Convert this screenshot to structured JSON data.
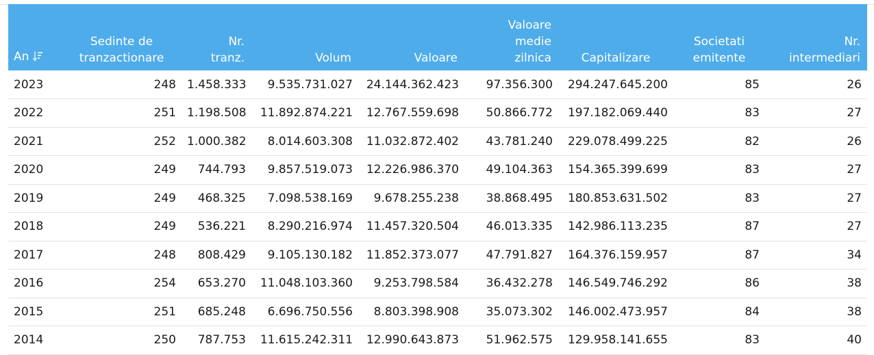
{
  "table": {
    "columns": [
      {
        "label_lines": [
          "An"
        ],
        "sortable": true,
        "sort_icon": "sort-descending-icon"
      },
      {
        "label_lines": [
          "Sedinte de",
          "tranzactionare"
        ]
      },
      {
        "label_lines": [
          "Nr.",
          "tranz."
        ]
      },
      {
        "label_lines": [
          "Volum"
        ]
      },
      {
        "label_lines": [
          "Valoare"
        ]
      },
      {
        "label_lines": [
          "Valoare",
          "medie",
          "zilnica"
        ]
      },
      {
        "label_lines": [
          "Capitalizare"
        ]
      },
      {
        "label_lines": [
          "Societati",
          "emitente"
        ]
      },
      {
        "label_lines": [
          "Nr.",
          "intermediari"
        ]
      }
    ],
    "rows": [
      [
        "2023",
        "248",
        "1.458.333",
        "9.535.731.027",
        "24.144.362.423",
        "97.356.300",
        "294.247.645.200",
        "85",
        "26"
      ],
      [
        "2022",
        "251",
        "1.198.508",
        "11.892.874.221",
        "12.767.559.698",
        "50.866.772",
        "197.182.069.440",
        "83",
        "27"
      ],
      [
        "2021",
        "252",
        "1.000.382",
        "8.014.603.308",
        "11.032.872.402",
        "43.781.240",
        "229.078.499.225",
        "82",
        "26"
      ],
      [
        "2020",
        "249",
        "744.793",
        "9.857.519.073",
        "12.226.986.370",
        "49.104.363",
        "154.365.399.699",
        "83",
        "27"
      ],
      [
        "2019",
        "249",
        "468.325",
        "7.098.538.169",
        "9.678.255.238",
        "38.868.495",
        "180.853.631.502",
        "83",
        "27"
      ],
      [
        "2018",
        "249",
        "536.221",
        "8.290.216.974",
        "11.457.320.504",
        "46.013.335",
        "142.986.113.235",
        "87",
        "27"
      ],
      [
        "2017",
        "248",
        "808.429",
        "9.105.130.182",
        "11.852.373.077",
        "47.791.827",
        "164.376.159.957",
        "87",
        "34"
      ],
      [
        "2016",
        "254",
        "653.270",
        "11.048.103.360",
        "9.253.798.584",
        "36.432.278",
        "146.549.746.292",
        "86",
        "38"
      ],
      [
        "2015",
        "251",
        "685.248",
        "6.696.750.556",
        "8.803.398.908",
        "35.073.302",
        "146.002.473.957",
        "84",
        "38"
      ],
      [
        "2014",
        "250",
        "787.753",
        "11.615.242.311",
        "12.990.643.873",
        "51.962.575",
        "129.958.141.655",
        "83",
        "40"
      ]
    ]
  },
  "colors": {
    "header_bg": "#4facea",
    "header_text": "#ffffff",
    "row_border": "#e3e3e3"
  }
}
